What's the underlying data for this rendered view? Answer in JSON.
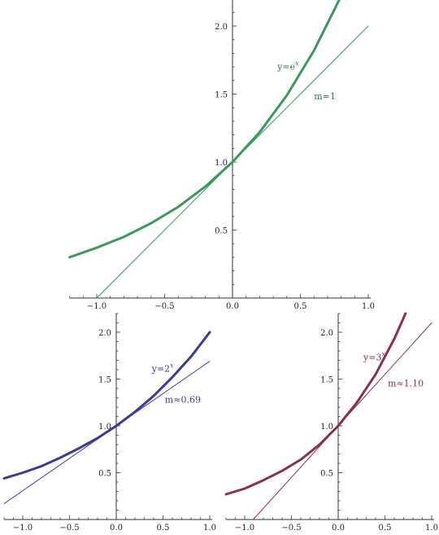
{
  "chart_data": [
    {
      "type": "line",
      "title": "",
      "xlabel": "",
      "ylabel": "",
      "xlim": [
        -1.2,
        1.0
      ],
      "ylim": [
        0.0,
        2.2
      ],
      "grid": false,
      "x_ticks": [
        -1.0,
        -0.5,
        0.0,
        0.5,
        1.0
      ],
      "x_tick_labels": [
        "-1.0",
        "-0.5",
        "0.0",
        "0.5",
        "1.0"
      ],
      "y_ticks": [
        0.5,
        1.0,
        1.5,
        2.0
      ],
      "y_tick_labels": [
        "0.5",
        "1.0",
        "1.5",
        "2.0"
      ],
      "series": [
        {
          "role": "curve",
          "color": "#3a9a5b",
          "x": [
            -1.2,
            -1.0,
            -0.8,
            -0.6,
            -0.4,
            -0.2,
            0.0,
            0.2,
            0.4,
            0.6,
            0.79
          ],
          "y": [
            0.3,
            0.37,
            0.45,
            0.55,
            0.67,
            0.82,
            1.0,
            1.22,
            1.49,
            1.82,
            2.2
          ]
        },
        {
          "role": "tangent",
          "color": "#3a9a5b",
          "x": [
            -1.0,
            1.0
          ],
          "y": [
            0.0,
            2.0
          ]
        }
      ],
      "annotations": [
        {
          "text": "y=e",
          "sup": "x",
          "color": "#2e7d4a",
          "x": 0.33,
          "y": 1.68
        },
        {
          "text": "m=1",
          "sup": "",
          "color": "#2e7d4a",
          "x": 0.6,
          "y": 1.46
        }
      ]
    },
    {
      "type": "line",
      "title": "",
      "xlabel": "",
      "ylabel": "",
      "xlim": [
        -1.2,
        1.0
      ],
      "ylim": [
        0.0,
        2.2
      ],
      "grid": false,
      "x_ticks": [
        -1.0,
        -0.5,
        0.0,
        0.5,
        1.0
      ],
      "x_tick_labels": [
        "-1.0",
        "-0.5",
        "0.0",
        "0.5",
        "1.0"
      ],
      "y_ticks": [
        0.5,
        1.0,
        1.5,
        2.0
      ],
      "y_tick_labels": [
        "0.5",
        "1.0",
        "1.5",
        "2.0"
      ],
      "series": [
        {
          "role": "curve",
          "color": "#3a3a9a",
          "x": [
            -1.2,
            -1.0,
            -0.8,
            -0.6,
            -0.4,
            -0.2,
            0.0,
            0.2,
            0.4,
            0.6,
            0.8,
            1.0
          ],
          "y": [
            0.44,
            0.5,
            0.57,
            0.66,
            0.76,
            0.87,
            1.0,
            1.15,
            1.32,
            1.52,
            1.74,
            2.0
          ]
        },
        {
          "role": "tangent",
          "color": "#3a3a9a",
          "x": [
            -1.2,
            1.0
          ],
          "y": [
            0.17,
            1.69
          ]
        }
      ],
      "annotations": [
        {
          "text": "y=2",
          "sup": "x",
          "color": "#3a3a9a",
          "x": 0.38,
          "y": 1.58
        },
        {
          "text": "m≈0.69",
          "sup": "",
          "color": "#3a3a9a",
          "x": 0.52,
          "y": 1.25
        }
      ]
    },
    {
      "type": "line",
      "title": "",
      "xlabel": "",
      "ylabel": "",
      "xlim": [
        -1.2,
        1.0
      ],
      "ylim": [
        0.0,
        2.2
      ],
      "grid": false,
      "x_ticks": [
        -1.0,
        -0.5,
        0.0,
        0.5,
        1.0
      ],
      "x_tick_labels": [
        "-1.0",
        "-0.5",
        "0.0",
        "0.5",
        "1.0"
      ],
      "y_ticks": [
        0.5,
        1.0,
        1.5,
        2.0
      ],
      "y_tick_labels": [
        "0.5",
        "1.0",
        "1.5",
        "2.0"
      ],
      "series": [
        {
          "role": "curve",
          "color": "#8a2e55",
          "x": [
            -1.2,
            -1.0,
            -0.8,
            -0.6,
            -0.4,
            -0.2,
            0.0,
            0.2,
            0.4,
            0.6,
            0.72
          ],
          "y": [
            0.27,
            0.33,
            0.42,
            0.52,
            0.64,
            0.8,
            1.0,
            1.25,
            1.55,
            1.93,
            2.2
          ]
        },
        {
          "role": "tangent",
          "color": "#8a2e55",
          "x": [
            -0.91,
            1.0
          ],
          "y": [
            0.0,
            2.1
          ]
        }
      ],
      "annotations": [
        {
          "text": "y=3",
          "sup": "x",
          "color": "#8a2e55",
          "x": 0.27,
          "y": 1.7
        },
        {
          "text": "m≈1.10",
          "sup": "",
          "color": "#8a2e55",
          "x": 0.53,
          "y": 1.42
        }
      ]
    }
  ]
}
